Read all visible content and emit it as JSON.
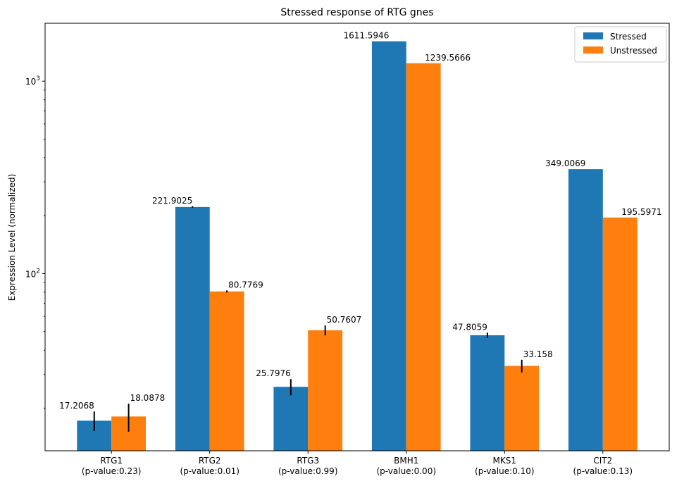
{
  "chart_data": {
    "type": "bar",
    "title": "Stressed response of RTG gnes",
    "xlabel": "",
    "ylabel": "Expression Level (normalized)",
    "yscale": "log",
    "ylim": [
      12,
      2000
    ],
    "yticks": [
      {
        "value": 100,
        "base": "10",
        "exp": "2"
      },
      {
        "value": 1000,
        "base": "10",
        "exp": "3"
      }
    ],
    "categories": [
      {
        "name": "RTG1",
        "pvalue": "(p-value:0.23)"
      },
      {
        "name": "RTG2",
        "pvalue": "(p-value:0.01)"
      },
      {
        "name": "RTG3",
        "pvalue": "(p-value:0.99)"
      },
      {
        "name": "BMH1",
        "pvalue": "(p-value:0.00)"
      },
      {
        "name": "MKS1",
        "pvalue": "(p-value:0.10)"
      },
      {
        "name": "CIT2",
        "pvalue": "(p-value:0.13)"
      }
    ],
    "series": [
      {
        "name": "Stressed",
        "color": "#1f77b4",
        "values": [
          17.2068,
          221.9025,
          25.7976,
          1611.5946,
          47.8059,
          349.0069
        ],
        "labels": [
          "17.2068",
          "221.9025",
          "25.7976",
          "1611.5946",
          "47.8059",
          "349.0069"
        ],
        "errors": [
          2,
          2,
          2.5,
          0,
          1.5,
          0
        ]
      },
      {
        "name": "Unstressed",
        "color": "#ff7f0e",
        "values": [
          18.0878,
          80.7769,
          50.7607,
          1239.5666,
          33.158,
          195.5971
        ],
        "labels": [
          "18.0878",
          "80.7769",
          "50.7607",
          "1239.5666",
          "33.158",
          "195.5971"
        ],
        "errors": [
          3,
          1,
          3,
          0,
          2.5,
          0
        ]
      }
    ],
    "legend": "top-right",
    "grid": false
  }
}
